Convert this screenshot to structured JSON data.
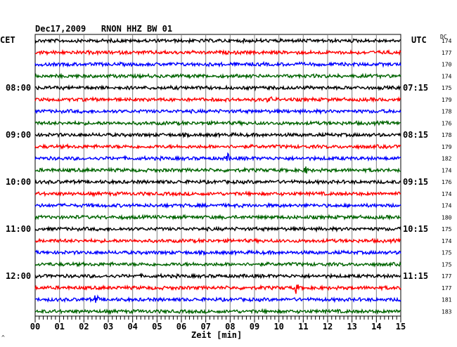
{
  "title": "Dec17,2009   RNON HHZ BW 01",
  "tz_left": "CET",
  "tz_right": "UTC",
  "dc_label": "DC",
  "corner_mark": "^",
  "chart_data": {
    "type": "line",
    "description_note": "",
    "xlabel": "Zeit [min]",
    "xlim": [
      0,
      15
    ],
    "x_ticks": [
      "00",
      "01",
      "02",
      "03",
      "04",
      "05",
      "06",
      "07",
      "08",
      "09",
      "10",
      "11",
      "12",
      "13",
      "14",
      "15"
    ],
    "grid": true,
    "trace_colors": [
      "#000000",
      "#ff0000",
      "#0000ff",
      "#006400"
    ],
    "left_labels": [
      {
        "trace": 4,
        "label": "08:00"
      },
      {
        "trace": 8,
        "label": "09:00"
      },
      {
        "trace": 12,
        "label": "10:00"
      },
      {
        "trace": 16,
        "label": "11:00"
      },
      {
        "trace": 20,
        "label": "12:00"
      }
    ],
    "right_labels": [
      {
        "trace": 4,
        "label": "07:15"
      },
      {
        "trace": 8,
        "label": "08:15"
      },
      {
        "trace": 12,
        "label": "09:15"
      },
      {
        "trace": 16,
        "label": "10:15"
      },
      {
        "trace": 20,
        "label": "11:15"
      }
    ],
    "dc_values": [
      "174",
      "177",
      "170",
      "174",
      "175",
      "179",
      "178",
      "176",
      "178",
      "179",
      "182",
      "174",
      "176",
      "174",
      "174",
      "180",
      "175",
      "174",
      "175",
      "175",
      "177",
      "177",
      "181",
      "183"
    ],
    "traces": 24,
    "events": [
      {
        "trace": 5,
        "minute": 9.6,
        "amplitude": 1.6
      },
      {
        "trace": 10,
        "minute": 7.9,
        "amplitude": 1.8
      },
      {
        "trace": 11,
        "minute": 11.1,
        "amplitude": 1.6
      },
      {
        "trace": 21,
        "minute": 10.7,
        "amplitude": 2.6
      },
      {
        "trace": 22,
        "minute": 2.5,
        "amplitude": 2.2
      }
    ]
  }
}
